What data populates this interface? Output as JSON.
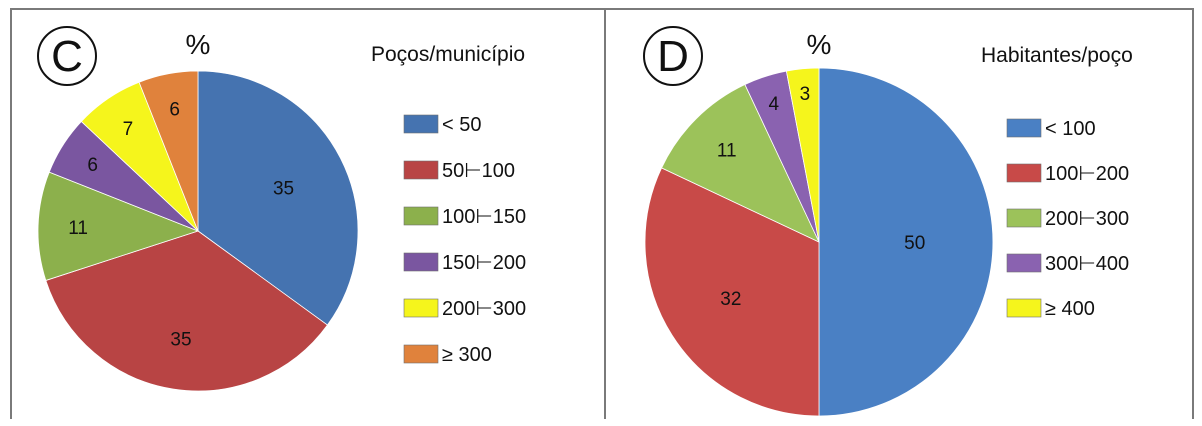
{
  "chart_data": [
    {
      "type": "pie",
      "panel_letter": "C",
      "title": "%",
      "legend_title": "Poços/município",
      "legend_position": "right",
      "categories": [
        "< 50",
        "50⊢100",
        "100⊢150",
        "150⊢200",
        "200⊢300",
        "≥ 300"
      ],
      "values": [
        35,
        35,
        11,
        6,
        7,
        6
      ],
      "colors": [
        "#4573b0",
        "#b84444",
        "#8cb04c",
        "#7a56a0",
        "#f5f51c",
        "#e0823c"
      ]
    },
    {
      "type": "pie",
      "panel_letter": "D",
      "title": "%",
      "legend_title": "Habitantes/poço",
      "legend_position": "right",
      "categories": [
        "< 100",
        "100⊢200",
        "200⊢300",
        "300⊢400",
        "≥ 400"
      ],
      "values": [
        50,
        32,
        11,
        4,
        3
      ],
      "colors": [
        "#4a80c4",
        "#c84a48",
        "#9cc25a",
        "#8a62b0",
        "#f5f51c"
      ]
    }
  ]
}
